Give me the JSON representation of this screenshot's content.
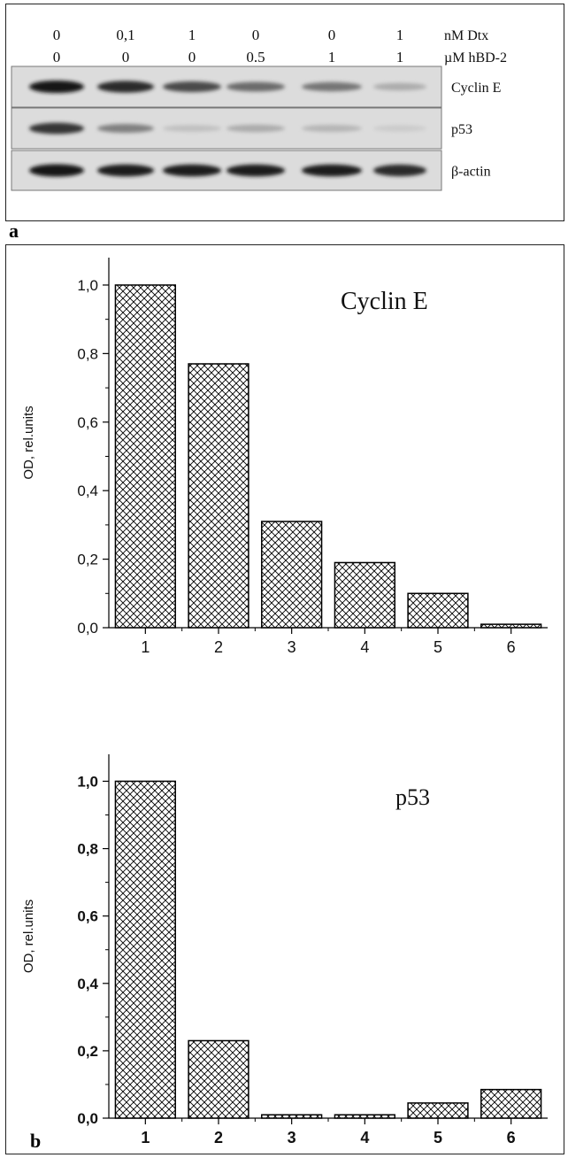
{
  "panel_a": {
    "letter": "a",
    "top_row": [
      "0",
      "0,1",
      "1",
      "0",
      "0",
      "1"
    ],
    "top_unit": "nM Dtx",
    "bottom_row": [
      "0",
      "0",
      "0",
      "0.5",
      "1",
      "1"
    ],
    "bottom_unit": "µM hBD-2",
    "blots": [
      {
        "name": "Cyclin E",
        "intensities": [
          1.0,
          0.9,
          0.75,
          0.6,
          0.55,
          0.3
        ]
      },
      {
        "name": "p53",
        "intensities": [
          0.85,
          0.5,
          0.2,
          0.3,
          0.25,
          0.15
        ]
      },
      {
        "name": "β-actin",
        "intensities": [
          1.0,
          0.95,
          0.95,
          0.95,
          0.95,
          0.9
        ]
      }
    ]
  },
  "panel_b": {
    "letter": "b"
  },
  "chart_data": [
    {
      "type": "bar",
      "title": "Cyclin E",
      "ylabel": "OD, rel.units",
      "xlabel": "",
      "categories": [
        "1",
        "2",
        "3",
        "4",
        "5",
        "6"
      ],
      "values": [
        1.0,
        0.77,
        0.31,
        0.19,
        0.1,
        0.01
      ],
      "ylim": [
        0,
        1.08
      ],
      "yticks": [
        "0,0",
        "0,2",
        "0,4",
        "0,6",
        "0,8",
        "1,0"
      ],
      "bold_ticks": false,
      "fill": "crosshatch"
    },
    {
      "type": "bar",
      "title": "p53",
      "ylabel": "OD, rel.units",
      "xlabel": "",
      "categories": [
        "1",
        "2",
        "3",
        "4",
        "5",
        "6"
      ],
      "values": [
        1.0,
        0.23,
        0.01,
        0.01,
        0.045,
        0.085
      ],
      "ylim": [
        0,
        1.08
      ],
      "yticks": [
        "0,0",
        "0,2",
        "0,4",
        "0,6",
        "0,8",
        "1,0"
      ],
      "bold_ticks": true,
      "fill": "crosshatch"
    }
  ]
}
